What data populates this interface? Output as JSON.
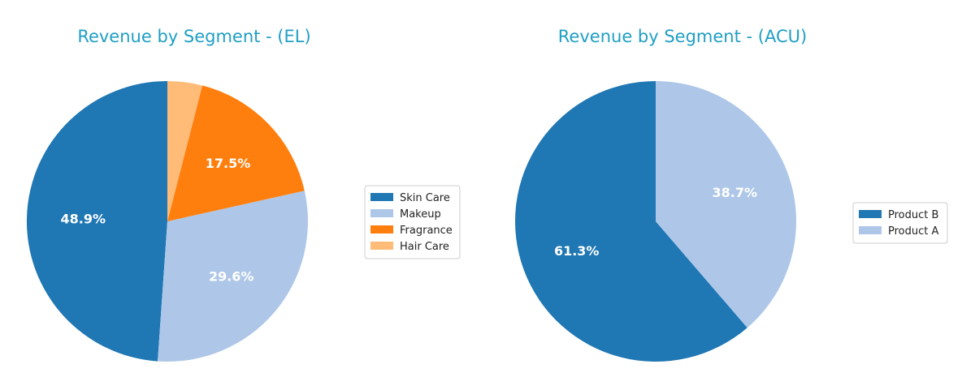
{
  "chart_data": [
    {
      "type": "pie",
      "title": "Revenue by Segment - (EL)",
      "title_color": "#1f9fc4",
      "slices": [
        {
          "label": "Skin Care",
          "value": 48.9,
          "pct_label": "48.9%",
          "color": "#1f77b4"
        },
        {
          "label": "Makeup",
          "value": 29.6,
          "pct_label": "29.6%",
          "color": "#aec7e8"
        },
        {
          "label": "Fragrance",
          "value": 17.5,
          "pct_label": "17.5%",
          "color": "#ff7f0e"
        },
        {
          "label": "Hair Care",
          "value": 4.0,
          "pct_label": "",
          "color": "#ffbb78"
        }
      ],
      "legend_placement": "right",
      "start_angle_deg": 90,
      "direction": "counterclockwise"
    },
    {
      "type": "pie",
      "title": "Revenue by Segment - (ACU)",
      "title_color": "#1f9fc4",
      "slices": [
        {
          "label": "Product B",
          "value": 61.3,
          "pct_label": "61.3%",
          "color": "#1f77b4"
        },
        {
          "label": "Product A",
          "value": 38.7,
          "pct_label": "38.7%",
          "color": "#aec7e8"
        }
      ],
      "legend_placement": "right",
      "start_angle_deg": 90,
      "direction": "counterclockwise"
    }
  ]
}
